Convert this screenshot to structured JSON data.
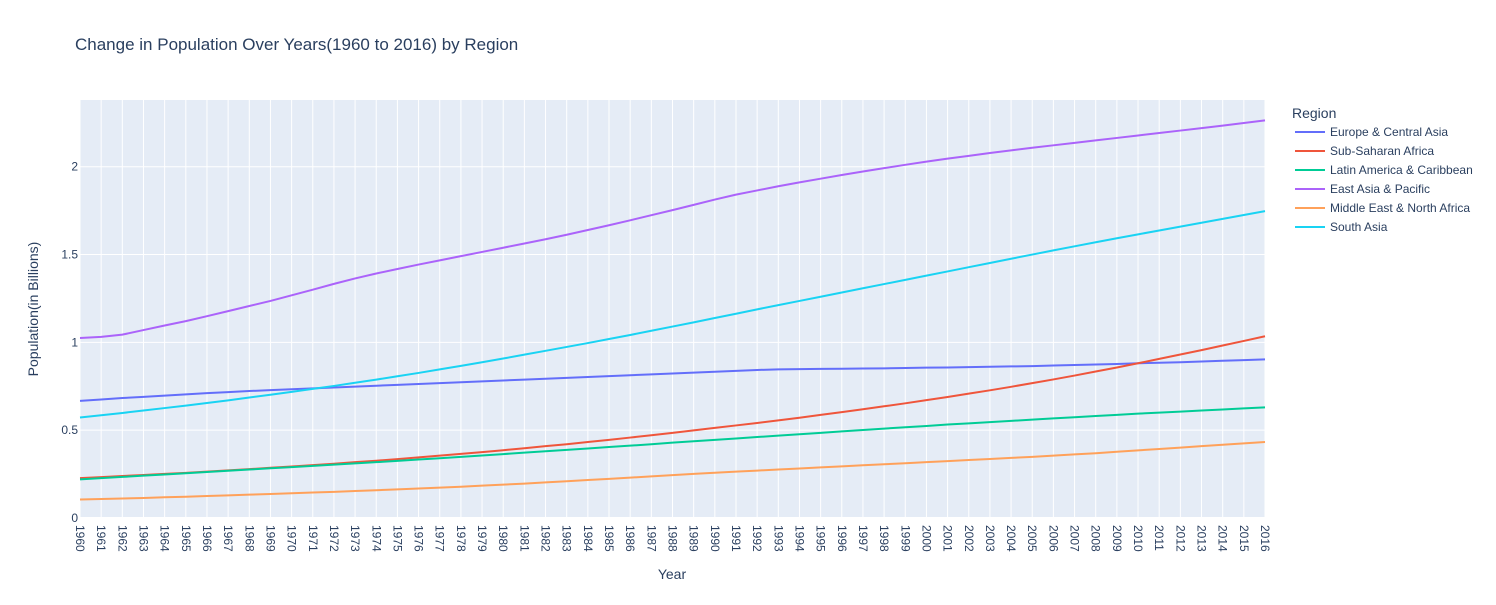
{
  "chart_data": {
    "type": "line",
    "title": "Change in Population Over Years(1960 to 2016) by Region",
    "xlabel": "Year",
    "ylabel": "Population(in Billions)",
    "xlim": [
      1960,
      2016
    ],
    "ylim": [
      0,
      2.38
    ],
    "yticks": [
      0,
      0.5,
      1,
      1.5,
      2
    ],
    "ytick_labels": [
      "0",
      "0.5",
      "1",
      "1.5",
      "2"
    ],
    "grid": true,
    "legend_title": "Region",
    "legend_position": "right",
    "background_color": "#e5ecf6",
    "x": [
      1960,
      1961,
      1962,
      1963,
      1964,
      1965,
      1966,
      1967,
      1968,
      1969,
      1970,
      1971,
      1972,
      1973,
      1974,
      1975,
      1976,
      1977,
      1978,
      1979,
      1980,
      1981,
      1982,
      1983,
      1984,
      1985,
      1986,
      1987,
      1988,
      1989,
      1990,
      1991,
      1992,
      1993,
      1994,
      1995,
      1996,
      1997,
      1998,
      1999,
      2000,
      2001,
      2002,
      2003,
      2004,
      2005,
      2006,
      2007,
      2008,
      2009,
      2010,
      2011,
      2012,
      2013,
      2014,
      2015,
      2016
    ],
    "series": [
      {
        "name": "Europe & Central Asia",
        "color": "#636efa",
        "values": [
          0.667,
          0.675,
          0.683,
          0.69,
          0.697,
          0.704,
          0.711,
          0.717,
          0.723,
          0.728,
          0.733,
          0.738,
          0.743,
          0.748,
          0.753,
          0.758,
          0.763,
          0.768,
          0.773,
          0.778,
          0.783,
          0.788,
          0.793,
          0.798,
          0.803,
          0.808,
          0.813,
          0.818,
          0.823,
          0.828,
          0.833,
          0.838,
          0.843,
          0.846,
          0.848,
          0.849,
          0.85,
          0.851,
          0.852,
          0.854,
          0.856,
          0.857,
          0.859,
          0.861,
          0.863,
          0.865,
          0.868,
          0.871,
          0.874,
          0.877,
          0.881,
          0.884,
          0.887,
          0.891,
          0.895,
          0.899,
          0.903
        ]
      },
      {
        "name": "Sub-Saharan Africa",
        "color": "#ef553b",
        "values": [
          0.227,
          0.233,
          0.239,
          0.245,
          0.251,
          0.257,
          0.264,
          0.271,
          0.278,
          0.286,
          0.293,
          0.301,
          0.309,
          0.318,
          0.326,
          0.335,
          0.345,
          0.355,
          0.365,
          0.375,
          0.386,
          0.397,
          0.409,
          0.42,
          0.433,
          0.445,
          0.458,
          0.471,
          0.485,
          0.499,
          0.513,
          0.527,
          0.541,
          0.556,
          0.571,
          0.587,
          0.603,
          0.619,
          0.636,
          0.653,
          0.671,
          0.689,
          0.708,
          0.727,
          0.747,
          0.768,
          0.789,
          0.811,
          0.834,
          0.857,
          0.881,
          0.906,
          0.931,
          0.956,
          0.982,
          1.008,
          1.035
        ]
      },
      {
        "name": "Latin America & Caribbean",
        "color": "#00cc96",
        "values": [
          0.22,
          0.227,
          0.234,
          0.241,
          0.248,
          0.255,
          0.262,
          0.269,
          0.276,
          0.283,
          0.29,
          0.297,
          0.304,
          0.311,
          0.318,
          0.325,
          0.333,
          0.34,
          0.348,
          0.356,
          0.364,
          0.372,
          0.38,
          0.388,
          0.396,
          0.404,
          0.412,
          0.42,
          0.429,
          0.437,
          0.445,
          0.453,
          0.461,
          0.469,
          0.477,
          0.485,
          0.493,
          0.501,
          0.509,
          0.517,
          0.524,
          0.532,
          0.539,
          0.546,
          0.553,
          0.56,
          0.567,
          0.574,
          0.581,
          0.587,
          0.594,
          0.6,
          0.606,
          0.612,
          0.618,
          0.624,
          0.63
        ]
      },
      {
        "name": "East Asia & Pacific",
        "color": "#ab63fa",
        "values": [
          1.025,
          1.031,
          1.044,
          1.07,
          1.096,
          1.121,
          1.149,
          1.178,
          1.207,
          1.236,
          1.268,
          1.3,
          1.333,
          1.364,
          1.392,
          1.418,
          1.443,
          1.467,
          1.491,
          1.515,
          1.539,
          1.563,
          1.587,
          1.613,
          1.64,
          1.667,
          1.695,
          1.724,
          1.753,
          1.783,
          1.813,
          1.841,
          1.865,
          1.889,
          1.911,
          1.932,
          1.953,
          1.973,
          1.992,
          2.011,
          2.029,
          2.046,
          2.062,
          2.078,
          2.093,
          2.108,
          2.122,
          2.136,
          2.15,
          2.164,
          2.178,
          2.192,
          2.206,
          2.22,
          2.234,
          2.249,
          2.264
        ]
      },
      {
        "name": "Middle East & North Africa",
        "color": "#ffa15a",
        "values": [
          0.105,
          0.108,
          0.111,
          0.114,
          0.118,
          0.121,
          0.125,
          0.129,
          0.133,
          0.137,
          0.141,
          0.145,
          0.149,
          0.154,
          0.158,
          0.163,
          0.168,
          0.173,
          0.178,
          0.184,
          0.19,
          0.196,
          0.203,
          0.209,
          0.216,
          0.223,
          0.23,
          0.237,
          0.244,
          0.251,
          0.258,
          0.264,
          0.27,
          0.276,
          0.282,
          0.288,
          0.294,
          0.3,
          0.306,
          0.312,
          0.318,
          0.324,
          0.33,
          0.336,
          0.342,
          0.348,
          0.355,
          0.362,
          0.369,
          0.377,
          0.385,
          0.393,
          0.401,
          0.409,
          0.417,
          0.425,
          0.433
        ]
      },
      {
        "name": "South Asia",
        "color": "#19d3f3",
        "values": [
          0.572,
          0.585,
          0.598,
          0.612,
          0.626,
          0.64,
          0.655,
          0.67,
          0.686,
          0.702,
          0.718,
          0.735,
          0.752,
          0.77,
          0.788,
          0.807,
          0.826,
          0.846,
          0.866,
          0.887,
          0.908,
          0.93,
          0.952,
          0.974,
          0.996,
          1.019,
          1.042,
          1.066,
          1.09,
          1.114,
          1.139,
          1.163,
          1.188,
          1.212,
          1.236,
          1.26,
          1.284,
          1.308,
          1.332,
          1.356,
          1.38,
          1.404,
          1.428,
          1.452,
          1.476,
          1.5,
          1.524,
          1.547,
          1.57,
          1.593,
          1.615,
          1.637,
          1.659,
          1.681,
          1.703,
          1.725,
          1.747
        ]
      }
    ]
  }
}
